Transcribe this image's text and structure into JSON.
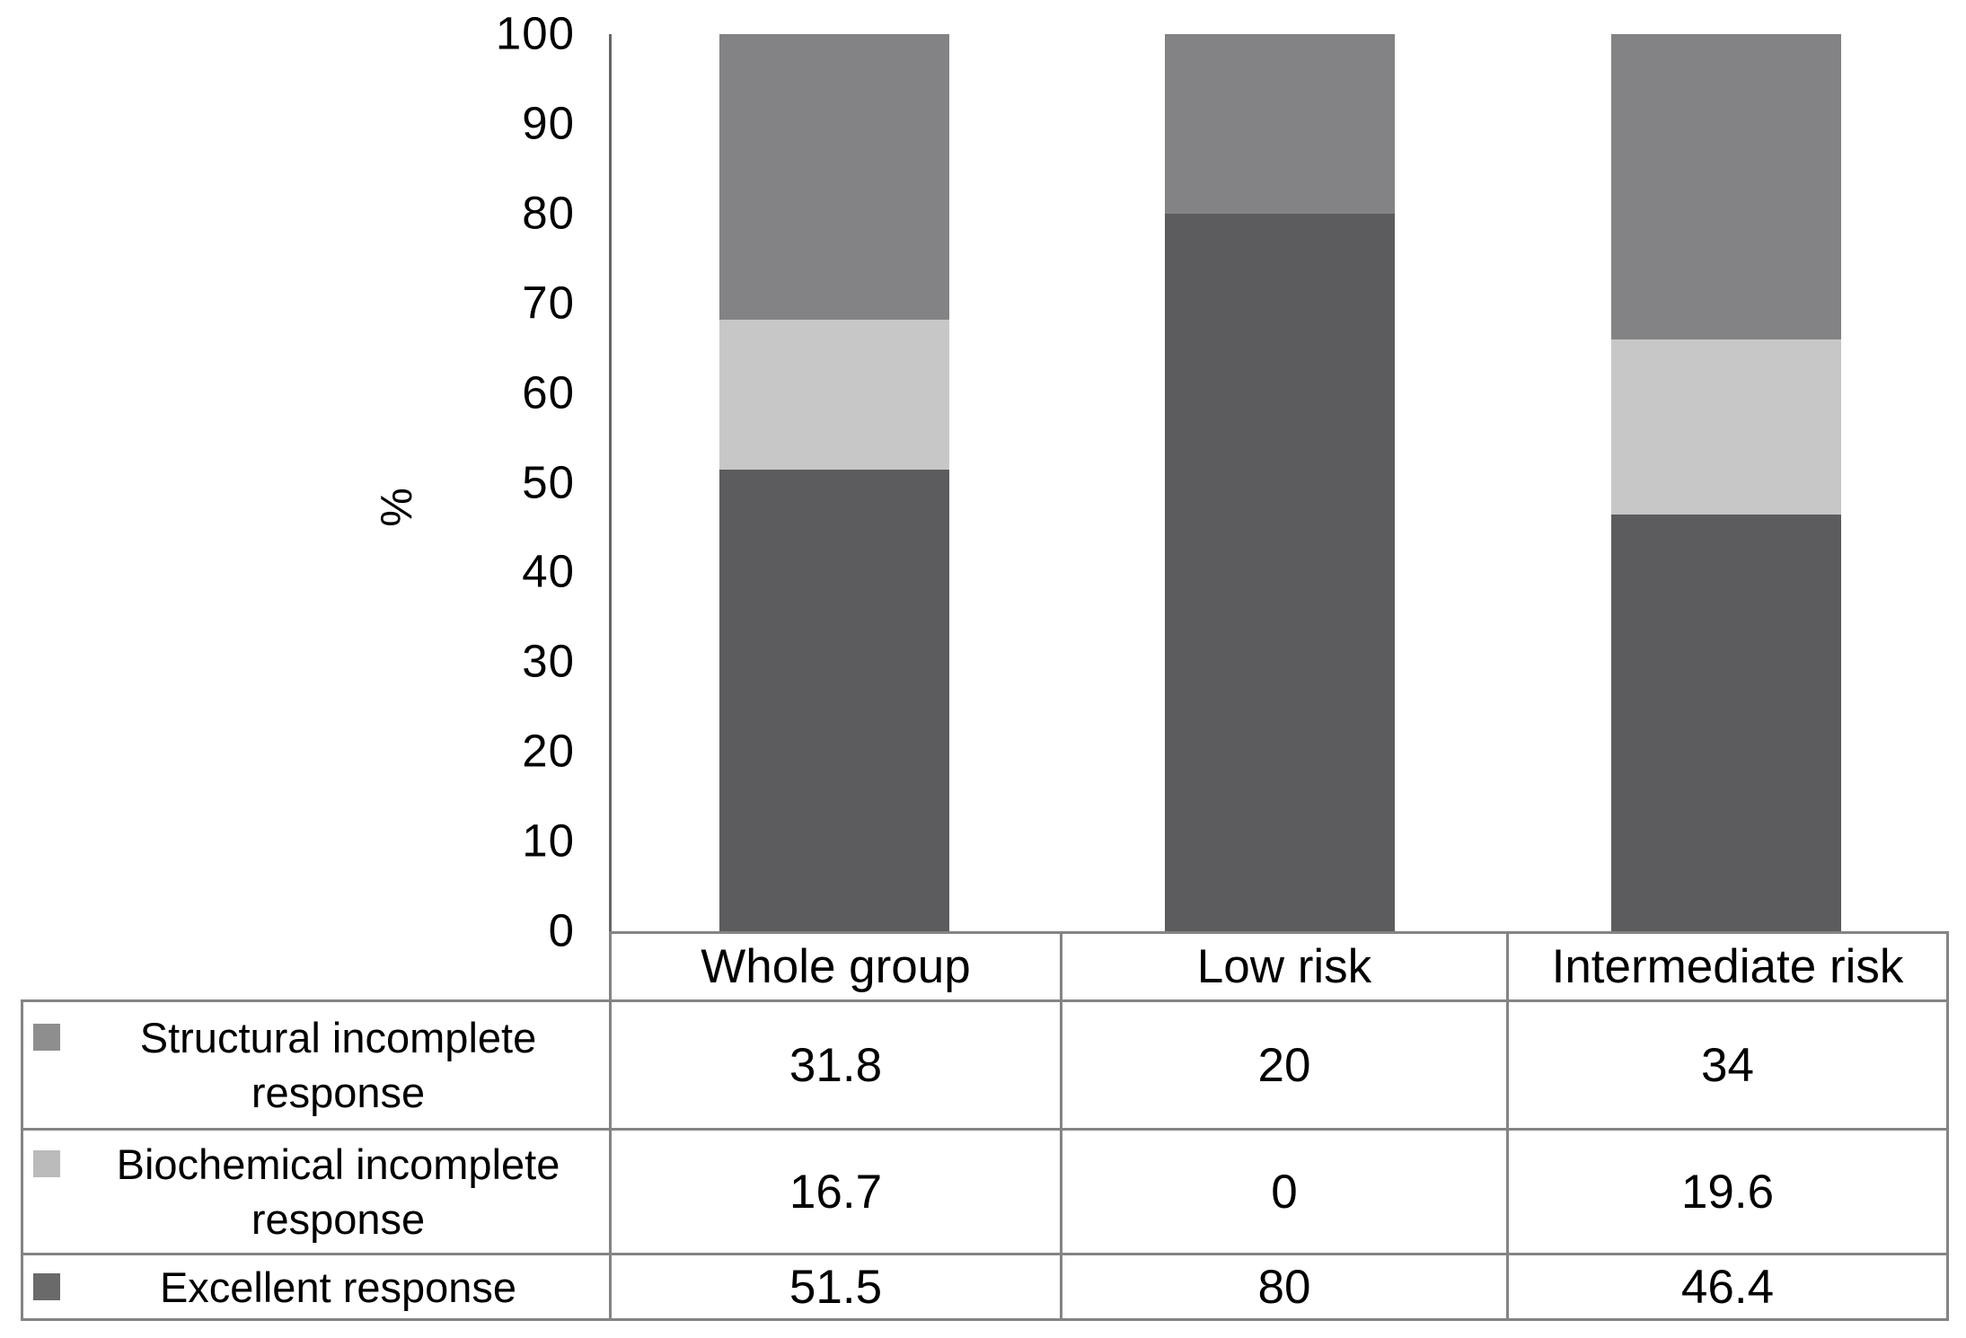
{
  "chart_data": {
    "type": "bar",
    "subtype": "stacked-column",
    "title": "",
    "xlabel": "",
    "ylabel": "%",
    "ylim": [
      0,
      100
    ],
    "yticks": [
      0,
      10,
      20,
      30,
      40,
      50,
      60,
      70,
      80,
      90,
      100
    ],
    "grid": false,
    "legend_position": "data-table-left",
    "categories": [
      "Whole group",
      "Low risk",
      "Intermediate risk"
    ],
    "series": [
      {
        "name": "Structural incomplete response",
        "values": [
          31.8,
          20,
          34
        ],
        "color": "#838385",
        "swatch_color": "#8e8e8e"
      },
      {
        "name": "Biochemical incomplete response",
        "values": [
          16.7,
          0,
          19.6
        ],
        "color": "#c6c7c6",
        "swatch_color": "#bababa"
      },
      {
        "name": "Excellent response",
        "values": [
          51.5,
          80,
          46.4
        ],
        "color": "#5c5c5e",
        "swatch_color": "#6a6a6a"
      }
    ],
    "stack_order_top_to_bottom": [
      "Structural incomplete response",
      "Biochemical incomplete response",
      "Excellent response"
    ]
  },
  "table": {
    "column_headers": [
      "Whole group",
      "Low risk",
      "Intermediate risk"
    ],
    "rows": [
      {
        "label": "Structural incomplete response",
        "values": [
          "31.8",
          "20",
          "34"
        ]
      },
      {
        "label": "Biochemical incomplete response",
        "values": [
          "16.7",
          "0",
          "19.6"
        ]
      },
      {
        "label": "Excellent response",
        "values": [
          "51.5",
          "80",
          "46.4"
        ]
      }
    ]
  },
  "colors": {
    "background": "#ffffff",
    "axis_line": "#666668",
    "table_border": "#848484",
    "text": "#000000"
  }
}
